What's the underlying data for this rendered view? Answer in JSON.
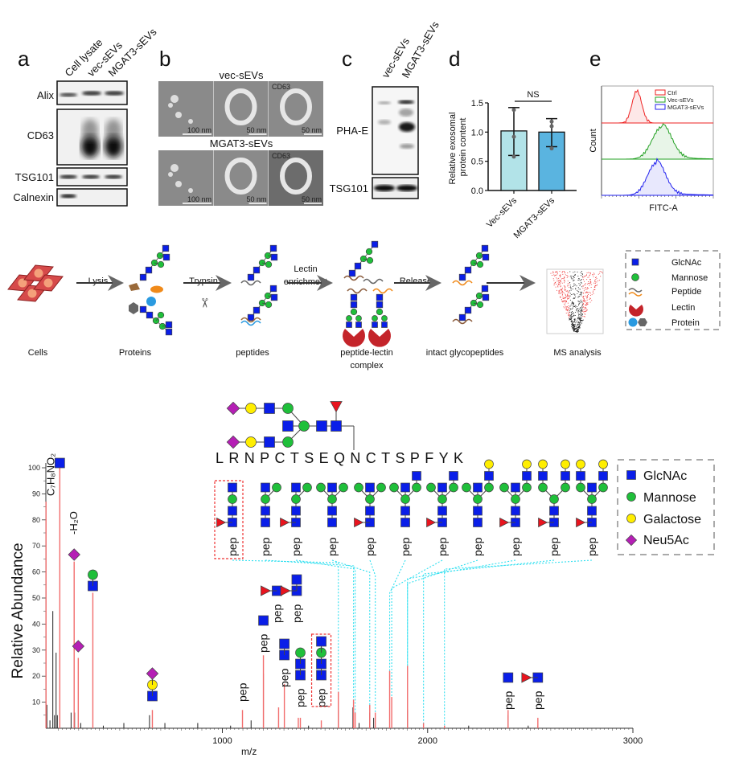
{
  "panels": {
    "a": {
      "label": "a",
      "lanes": [
        "Cell lysate",
        "vec-sEVs",
        "MGAT3-sEVs"
      ],
      "rows": [
        "Alix",
        "CD63",
        "TSG101",
        "Calnexin"
      ]
    },
    "b": {
      "label": "b",
      "groups": [
        {
          "title": "vec-sEVs",
          "scale_bars": [
            "100 nm",
            "50 nm",
            "50 nm"
          ],
          "tag": "CD63"
        },
        {
          "title": "MGAT3-sEVs",
          "scale_bars": [
            "100 nm",
            "50 nm",
            "50 nm"
          ],
          "tag": "CD63"
        }
      ]
    },
    "c": {
      "label": "c",
      "lanes": [
        "vec-sEVs",
        "MGAT3-sEVs"
      ],
      "rows": [
        "PHA-E",
        "TSG101"
      ]
    },
    "d": {
      "label": "d"
    },
    "e": {
      "label": "e"
    }
  },
  "workflow": {
    "steps": [
      "Cells",
      "Proteins",
      "peptides",
      "peptide-lectin",
      "complex",
      "intact glycopeptides",
      "MS analysis"
    ],
    "arrows": [
      "Lysis",
      "Trypsin",
      "Lectin",
      "enrichment",
      "Release"
    ],
    "legend": [
      "GlcNAc",
      "Mannose",
      "Peptide",
      "Lectin",
      "Protein"
    ]
  },
  "glycopeptide": {
    "sequence": "LRNPCTSEQNCTSPFYK",
    "fragment_label": "pep",
    "fragments": [
      {
        "fucose": true,
        "boxed": true,
        "stem": [
          "GlcNAc",
          "GlcNAc",
          "Mannose",
          "GlcNAc"
        ],
        "arms": {}
      },
      {
        "fucose": false,
        "stem": [
          "GlcNAc",
          "GlcNAc",
          "Mannose"
        ],
        "arms": {
          "center": [
            "GlcNAc"
          ],
          "right": [
            "Mannose"
          ]
        }
      },
      {
        "fucose": true,
        "stem": [
          "GlcNAc",
          "GlcNAc",
          "Mannose"
        ],
        "arms": {
          "center": [
            "GlcNAc"
          ],
          "right": [
            "Mannose"
          ]
        }
      },
      {
        "fucose": false,
        "stem": [
          "GlcNAc",
          "GlcNAc",
          "Mannose"
        ],
        "arms": {
          "left": [
            "Mannose"
          ],
          "center": [
            "GlcNAc"
          ],
          "right": [
            "Mannose"
          ]
        }
      },
      {
        "fucose": true,
        "stem": [
          "GlcNAc",
          "GlcNAc",
          "Mannose"
        ],
        "arms": {
          "left": [
            "Mannose"
          ],
          "center": [
            "GlcNAc"
          ],
          "right": [
            "Mannose"
          ]
        }
      },
      {
        "fucose": false,
        "stem": [
          "GlcNAc",
          "GlcNAc",
          "Mannose"
        ],
        "arms": {
          "left": [
            "Mannose"
          ],
          "center": [
            "GlcNAc"
          ],
          "right": [
            "Mannose",
            "GlcNAc"
          ]
        }
      },
      {
        "fucose": true,
        "stem": [
          "GlcNAc",
          "GlcNAc",
          "Mannose"
        ],
        "arms": {
          "left": [
            "Mannose"
          ],
          "center": [
            "GlcNAc"
          ],
          "right": [
            "Mannose",
            "GlcNAc"
          ]
        }
      },
      {
        "fucose": false,
        "stem": [
          "GlcNAc",
          "GlcNAc",
          "Mannose"
        ],
        "arms": {
          "left": [
            "Mannose"
          ],
          "center": [
            "GlcNAc"
          ],
          "right": [
            "Mannose",
            "GlcNAc",
            "Galactose"
          ]
        }
      },
      {
        "fucose": true,
        "stem": [
          "GlcNAc",
          "GlcNAc",
          "Mannose"
        ],
        "arms": {
          "left": [
            "Mannose"
          ],
          "center": [
            "GlcNAc"
          ],
          "right": [
            "Mannose",
            "GlcNAc",
            "Galactose"
          ]
        }
      },
      {
        "fucose": true,
        "stem": [
          "GlcNAc",
          "GlcNAc",
          "Mannose"
        ],
        "arms": {
          "left": [
            "Mannose",
            "GlcNAc",
            "Galactose"
          ],
          "right": [
            "Mannose",
            "GlcNAc",
            "Galactose"
          ]
        }
      },
      {
        "fucose": true,
        "stem": [
          "GlcNAc",
          "GlcNAc",
          "Mannose"
        ],
        "arms": {
          "left": [
            "Mannose",
            "GlcNAc",
            "Galactose"
          ],
          "center": [
            "GlcNAc"
          ],
          "right": [
            "Mannose",
            "GlcNAc",
            "Galactose"
          ]
        }
      }
    ],
    "legend": [
      "GlcNAc",
      "Mannose",
      "Galactose",
      "Neu5Ac"
    ]
  },
  "colors": {
    "GlcNAc": "#0a1ee8",
    "Mannose": "#1fbf3a",
    "Galactose": "#ffee00",
    "Neu5Ac": "#b51fb5",
    "Fucose": "#e8141e",
    "annotated_peak": "#f26d6d",
    "other_peak": "#222222",
    "link": "#33e0f0"
  },
  "chart_data": [
    {
      "panel": "d",
      "type": "bar",
      "categories": [
        "Vec-sEVs",
        "MGAT3-sEVs"
      ],
      "values": [
        1.02,
        1.0
      ],
      "error_low": [
        0.6,
        0.75
      ],
      "error_high": [
        1.42,
        1.23
      ],
      "points": [
        [
          1.38,
          0.92,
          0.58
        ],
        [
          1.18,
          1.1,
          0.72
        ]
      ],
      "bar_colors": [
        "#b2e3e8",
        "#5ab4e0"
      ],
      "ylabel": "Relative exosomal protein content",
      "ylim": [
        0,
        1.5
      ],
      "yticks": [
        "0.0",
        "0.5",
        "1.0",
        "1.5"
      ],
      "annotation": "NS"
    },
    {
      "panel": "e",
      "type": "area",
      "series": [
        {
          "name": "Ctrl",
          "color": "#ee2222"
        },
        {
          "name": "Vec-sEVs",
          "color": "#22a022"
        },
        {
          "name": "MGAT3-sEVs",
          "color": "#2222ee"
        }
      ],
      "xlabel": "FITC-A",
      "ylabel": "Count",
      "legend": "top-right"
    },
    {
      "panel": "spectrum",
      "type": "bar",
      "xlabel": "m/z",
      "ylabel": "Relative Abundance",
      "xlim": [
        140,
        3000
      ],
      "ylim": [
        0,
        100
      ],
      "xticks": [
        "1000",
        "2000",
        "3000"
      ],
      "yticks": [
        "10",
        "20",
        "30",
        "40",
        "50",
        "60",
        "70",
        "80",
        "90",
        "100"
      ],
      "annotated_peaks": [
        [
          141,
          87
        ],
        [
          208,
          100
        ],
        [
          278,
          64
        ],
        [
          298,
          27
        ],
        [
          369,
          52
        ],
        [
          659,
          7
        ],
        [
          1098,
          7
        ],
        [
          1200,
          28
        ],
        [
          1274,
          8
        ],
        [
          1302,
          17
        ],
        [
          1370,
          4
        ],
        [
          1380,
          4
        ],
        [
          1482,
          3
        ],
        [
          1565,
          14
        ],
        [
          1639,
          11
        ],
        [
          1647,
          6
        ],
        [
          1718,
          9
        ],
        [
          1745,
          6
        ],
        [
          1815,
          22
        ],
        [
          1825,
          12
        ],
        [
          1902,
          24
        ],
        [
          1980,
          2
        ],
        [
          2082,
          1
        ],
        [
          2392,
          7
        ],
        [
          2537,
          4
        ]
      ],
      "other_peaks": [
        [
          145,
          9
        ],
        [
          160,
          3
        ],
        [
          174,
          45
        ],
        [
          182,
          5
        ],
        [
          190,
          29
        ],
        [
          196,
          5
        ],
        [
          263,
          6
        ],
        [
          280,
          6
        ],
        [
          310,
          2
        ],
        [
          420,
          1
        ],
        [
          520,
          2
        ],
        [
          645,
          5
        ],
        [
          720,
          2
        ],
        [
          880,
          2
        ],
        [
          1040,
          1
        ],
        [
          1140,
          3
        ],
        [
          1200,
          21
        ],
        [
          1274,
          3
        ],
        [
          1420,
          1
        ],
        [
          1565,
          7
        ],
        [
          1636,
          8
        ],
        [
          1666,
          2
        ],
        [
          1718,
          6
        ],
        [
          1737,
          4
        ],
        [
          1902,
          7
        ],
        [
          2200,
          1
        ],
        [
          2392,
          5
        ],
        [
          2490,
          1
        ],
        [
          2537,
          1
        ]
      ],
      "annotations": [
        {
          "mz": 141,
          "text": "C₇H₈NO₂"
        },
        {
          "mz": 208,
          "symbols": [
            "GlcNAc"
          ]
        },
        {
          "mz": 278,
          "text": "-H₂O",
          "symbols": [
            "Neu5Ac"
          ]
        },
        {
          "mz": 298,
          "symbols": [
            "Neu5Ac"
          ]
        },
        {
          "mz": 369,
          "symbols": [
            "GlcNAc",
            "Mannose"
          ]
        },
        {
          "mz": 659,
          "symbols": [
            "GlcNAc",
            "Galactose",
            "Neu5Ac"
          ]
        },
        {
          "mz": 1098,
          "text": "pep"
        },
        {
          "mz": 1200,
          "text": "pep",
          "symbols": [
            "GlcNAc"
          ]
        },
        {
          "mz": 1274,
          "text": "pep",
          "symbols": [
            "GlcNAc"
          ],
          "fucose": true
        },
        {
          "mz": 1302,
          "text": "pep",
          "symbols": [
            "GlcNAc",
            "GlcNAc"
          ]
        },
        {
          "mz": 1370,
          "text": "pep",
          "symbols": [
            "GlcNAc",
            "GlcNAc"
          ],
          "fucose": true
        },
        {
          "mz": 1380,
          "text": "pep",
          "symbols": [
            "GlcNAc",
            "GlcNAc",
            "Mannose"
          ]
        },
        {
          "mz": 1482,
          "text": "pep",
          "symbols": [
            "GlcNAc",
            "GlcNAc",
            "Mannose",
            "GlcNAc"
          ],
          "boxed": true
        },
        {
          "mz": 2392,
          "text": "pep",
          "symbols": [
            "GlcNAc"
          ]
        },
        {
          "mz": 2537,
          "text": "pep",
          "symbols": [
            "GlcNAc"
          ],
          "fucose": true
        }
      ]
    }
  ]
}
